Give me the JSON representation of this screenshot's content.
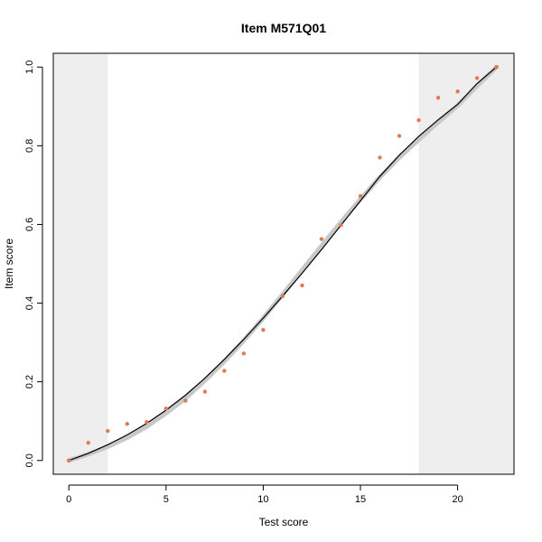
{
  "chart_data": {
    "type": "line",
    "title": "Item M571Q01",
    "xlabel": "Test score",
    "ylabel": "Item score",
    "xlim": [
      -0.8,
      22.9
    ],
    "ylim": [
      -0.035,
      1.035
    ],
    "x_ticks": [
      0,
      5,
      10,
      15,
      20
    ],
    "y_ticks": [
      0.0,
      0.2,
      0.4,
      0.6,
      0.8,
      1.0
    ],
    "x_tick_labels": [
      "0",
      "5",
      "10",
      "15",
      "20"
    ],
    "y_tick_labels": [
      "0.0",
      "0.2",
      "0.4",
      "0.6",
      "0.8",
      "1.0"
    ],
    "shaded_regions": [
      {
        "from": -0.8,
        "to": 2
      },
      {
        "from": 18,
        "to": 22.9
      }
    ],
    "series": [
      {
        "type": "line",
        "color": "#000000",
        "x": [
          0,
          1,
          2,
          3,
          4,
          5,
          6,
          7,
          8,
          9,
          10,
          11,
          12,
          13,
          14,
          15,
          16,
          17,
          18,
          19,
          20,
          21,
          22
        ],
        "y": [
          0.0,
          0.018,
          0.04,
          0.065,
          0.094,
          0.128,
          0.166,
          0.209,
          0.257,
          0.308,
          0.362,
          0.418,
          0.476,
          0.536,
          0.598,
          0.66,
          0.722,
          0.776,
          0.824,
          0.866,
          0.905,
          0.958,
          1.0
        ]
      },
      {
        "type": "band",
        "color": "#c8c8c8",
        "x": [
          0,
          1,
          2,
          3,
          4,
          5,
          6,
          7,
          8,
          9,
          10,
          11,
          12,
          13,
          14,
          15,
          16,
          17,
          18,
          19,
          20,
          21,
          22
        ],
        "y": [
          0.0,
          0.016,
          0.035,
          0.058,
          0.086,
          0.12,
          0.158,
          0.203,
          0.252,
          0.305,
          0.362,
          0.422,
          0.484,
          0.546,
          0.606,
          0.664,
          0.72,
          0.77,
          0.816,
          0.86,
          0.902,
          0.952,
          1.0
        ]
      },
      {
        "type": "scatter",
        "color": "#e07a4f",
        "x": [
          0,
          1,
          2,
          3,
          4,
          5,
          6,
          7,
          8,
          9,
          10,
          11,
          12,
          13,
          14,
          15,
          16,
          17,
          18,
          19,
          20,
          21,
          22
        ],
        "y": [
          0.0,
          0.045,
          0.075,
          0.093,
          0.098,
          0.132,
          0.152,
          0.175,
          0.228,
          0.272,
          0.332,
          0.418,
          0.445,
          0.563,
          0.598,
          0.672,
          0.77,
          0.825,
          0.865,
          0.922,
          0.938,
          0.972,
          1.0
        ]
      }
    ]
  }
}
